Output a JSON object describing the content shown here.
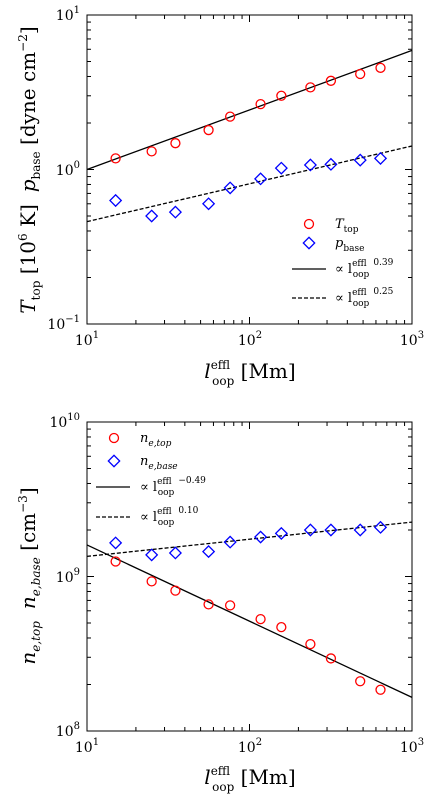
{
  "chart_data": [
    {
      "type": "scatter",
      "xscale": "log",
      "yscale": "log",
      "xlim": [
        10,
        1000
      ],
      "ylim": [
        0.1,
        10
      ],
      "xlabel": "l_loop^eff [Mm]",
      "ylabel": "T_top [10^6 K]   p_base [dyne cm^-2]",
      "x_tick_labels": [
        "10^1",
        "10^2",
        "10^3"
      ],
      "y_tick_labels": [
        "10^-1",
        "10^0",
        "10^1"
      ],
      "legend_position": "lower right",
      "x": [
        15,
        25,
        35,
        56,
        76,
        117,
        157,
        237,
        317,
        480,
        640
      ],
      "series": [
        {
          "name": "T_top",
          "marker": "circle",
          "color": "#ff0000",
          "values": [
            1.18,
            1.31,
            1.48,
            1.8,
            2.2,
            2.65,
            3.0,
            3.4,
            3.75,
            4.15,
            4.55
          ]
        },
        {
          "name": "p_base",
          "marker": "diamond",
          "color": "#0000ff",
          "values": [
            0.63,
            0.5,
            0.53,
            0.6,
            0.76,
            0.87,
            1.02,
            1.07,
            1.08,
            1.15,
            1.18
          ]
        },
        {
          "name": "∝ l_loop^eff 0.39",
          "style": "solid",
          "color": "#000000",
          "fit": {
            "x": [
              10,
              1000
            ],
            "y": [
              1.0,
              5.9
            ]
          }
        },
        {
          "name": "∝ l_loop^eff 0.25",
          "style": "dashed",
          "color": "#000000",
          "fit": {
            "x": [
              10,
              1000
            ],
            "y": [
              0.46,
              1.42
            ]
          }
        }
      ]
    },
    {
      "type": "scatter",
      "xscale": "log",
      "yscale": "log",
      "xlim": [
        10,
        1000
      ],
      "ylim": [
        100000000.0,
        10000000000.0
      ],
      "xlabel": "l_loop^eff [Mm]",
      "ylabel": "n_e,top   n_e,base [cm^-3]",
      "x_tick_labels": [
        "10^1",
        "10^2",
        "10^3"
      ],
      "y_tick_labels": [
        "10^8",
        "10^9",
        "10^10"
      ],
      "legend_position": "upper left",
      "x": [
        15,
        25,
        35,
        56,
        76,
        117,
        157,
        237,
        317,
        480,
        640
      ],
      "series": [
        {
          "name": "n_e,top",
          "marker": "circle",
          "color": "#ff0000",
          "values": [
            1250000000.0,
            930000000.0,
            810000000.0,
            660000000.0,
            650000000.0,
            530000000.0,
            470000000.0,
            365000000.0,
            295000000.0,
            210000000.0,
            185000000.0
          ]
        },
        {
          "name": "n_e,base",
          "marker": "diamond",
          "color": "#0000ff",
          "values": [
            1650000000.0,
            1380000000.0,
            1420000000.0,
            1450000000.0,
            1670000000.0,
            1800000000.0,
            1900000000.0,
            2000000000.0,
            2000000000.0,
            2000000000.0,
            2080000000.0
          ]
        },
        {
          "name": "∝ l_loop^eff −0.49",
          "style": "solid",
          "color": "#000000",
          "fit": {
            "x": [
              10,
              1000
            ],
            "y": [
              1600000000.0,
              165000000.0
            ]
          }
        },
        {
          "name": "∝ l_loop^eff 0.10",
          "style": "dashed",
          "color": "#000000",
          "fit": {
            "x": [
              10,
              1000
            ],
            "y": [
              1350000000.0,
              2250000000.0
            ]
          }
        }
      ]
    }
  ],
  "legend_text": {
    "top": {
      "ttop_main": "T",
      "ttop_sub": "top",
      "pbase_main": "p",
      "pbase_sub": "base",
      "fit1_prop": "∝ l",
      "fit1_sup": "eff",
      "fit1_sub": "loop",
      "fit1_exp": "0.39",
      "fit2_prop": "∝ l",
      "fit2_sup": "eff",
      "fit2_sub": "loop",
      "fit2_exp": "0.25"
    },
    "bottom": {
      "ntop_main": "n",
      "ntop_sub": "e,top",
      "nbase_main": "n",
      "nbase_sub": "e,base",
      "fit1_prop": "∝ l",
      "fit1_sup": "eff",
      "fit1_sub": "loop",
      "fit1_exp": "−0.49",
      "fit2_prop": "∝ l",
      "fit2_sup": "eff",
      "fit2_sub": "loop",
      "fit2_exp": "0.10"
    }
  },
  "axis_text": {
    "top": {
      "x_main": "l",
      "x_sup": "eff",
      "x_sub": "loop",
      "x_unit": " [Mm]",
      "y_T": "T",
      "y_T_sub": "top",
      "y_T_unit": " [10",
      "y_T_exp": "6",
      "y_T_unit2": " K]",
      "y_p": "p",
      "y_p_sub": "base",
      "y_p_unit": " [dyne cm",
      "y_p_exp": "−2",
      "y_p_unit2": "]"
    },
    "bottom": {
      "x_main": "l",
      "x_sup": "eff",
      "x_sub": "loop",
      "x_unit": " [Mm]",
      "y_n1": "n",
      "y_n1_sub": "e,top",
      "y_n2": "n",
      "y_n2_sub": "e,base",
      "y_unit": " [cm",
      "y_exp": "−3",
      "y_unit2": "]"
    }
  },
  "ticks": {
    "x": [
      {
        "base": "10",
        "exp": "1"
      },
      {
        "base": "10",
        "exp": "2"
      },
      {
        "base": "10",
        "exp": "3"
      }
    ],
    "y_top": [
      {
        "base": "10",
        "exp": "−1"
      },
      {
        "base": "10",
        "exp": "0"
      },
      {
        "base": "10",
        "exp": "1"
      }
    ],
    "y_bottom": [
      {
        "base": "10",
        "exp": "8"
      },
      {
        "base": "10",
        "exp": "9"
      },
      {
        "base": "10",
        "exp": "10"
      }
    ]
  }
}
